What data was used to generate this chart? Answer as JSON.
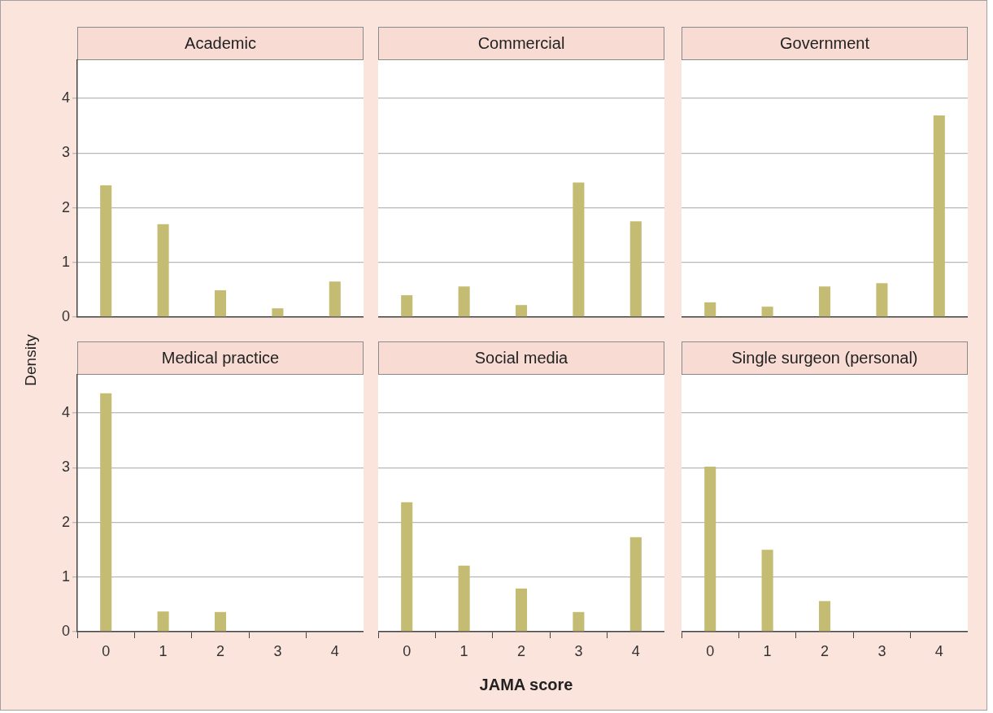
{
  "chart_data": [
    {
      "type": "bar",
      "title": "Academic",
      "ylabel": "Density",
      "categories": [
        "0",
        "1",
        "2",
        "3",
        "4"
      ],
      "values": [
        2.41,
        1.7,
        0.49,
        0.16,
        0.65
      ],
      "color": "#c4bc72",
      "ylim": [
        0,
        4.7
      ],
      "yticks": [
        0,
        1,
        2,
        3,
        4
      ],
      "grid": "y",
      "tick_labels": "y"
    },
    {
      "type": "bar",
      "title": "Commercial",
      "categories": [
        "0",
        "1",
        "2",
        "3",
        "4"
      ],
      "values": [
        0.4,
        0.56,
        0.22,
        2.46,
        1.75
      ],
      "color": "#c4bc72",
      "ylim": [
        0,
        4.7
      ],
      "yticks": [
        0,
        1,
        2,
        3,
        4
      ],
      "grid": "y",
      "tick_labels": false
    },
    {
      "type": "bar",
      "title": "Government",
      "categories": [
        "0",
        "1",
        "2",
        "3",
        "4"
      ],
      "values": [
        0.27,
        0.19,
        0.56,
        0.62,
        3.69
      ],
      "color": "#c4bc72",
      "ylim": [
        0,
        4.7
      ],
      "yticks": [
        0,
        1,
        2,
        3,
        4
      ],
      "grid": "y",
      "tick_labels": false
    },
    {
      "type": "bar",
      "title": "Medical practice",
      "categories": [
        "0",
        "1",
        "2",
        "3",
        "4"
      ],
      "values": [
        4.36,
        0.37,
        0.36,
        0,
        0
      ],
      "color": "#c4bc72",
      "ylim": [
        0,
        4.7
      ],
      "yticks": [
        0,
        1,
        2,
        3,
        4
      ],
      "grid": "y"
    },
    {
      "type": "bar",
      "title": "Social media",
      "xlabel": "JAMA score",
      "categories": [
        "0",
        "1",
        "2",
        "3",
        "4"
      ],
      "values": [
        2.37,
        1.21,
        0.79,
        0.36,
        1.73
      ],
      "color": "#c4bc72",
      "ylim": [
        0,
        4.7
      ],
      "yticks": [
        0,
        1,
        2,
        3,
        4
      ],
      "grid": "y",
      "tick_labels": "x"
    },
    {
      "type": "bar",
      "title": "Single surgeon (personal)",
      "categories": [
        "0",
        "1",
        "2",
        "3",
        "4"
      ],
      "values": [
        3.02,
        1.5,
        0.56,
        0,
        0
      ],
      "color": "#c4bc72",
      "ylim": [
        0,
        4.7
      ],
      "yticks": [
        0,
        1,
        2,
        3,
        4
      ],
      "grid": "y",
      "tick_labels": "x"
    }
  ]
}
